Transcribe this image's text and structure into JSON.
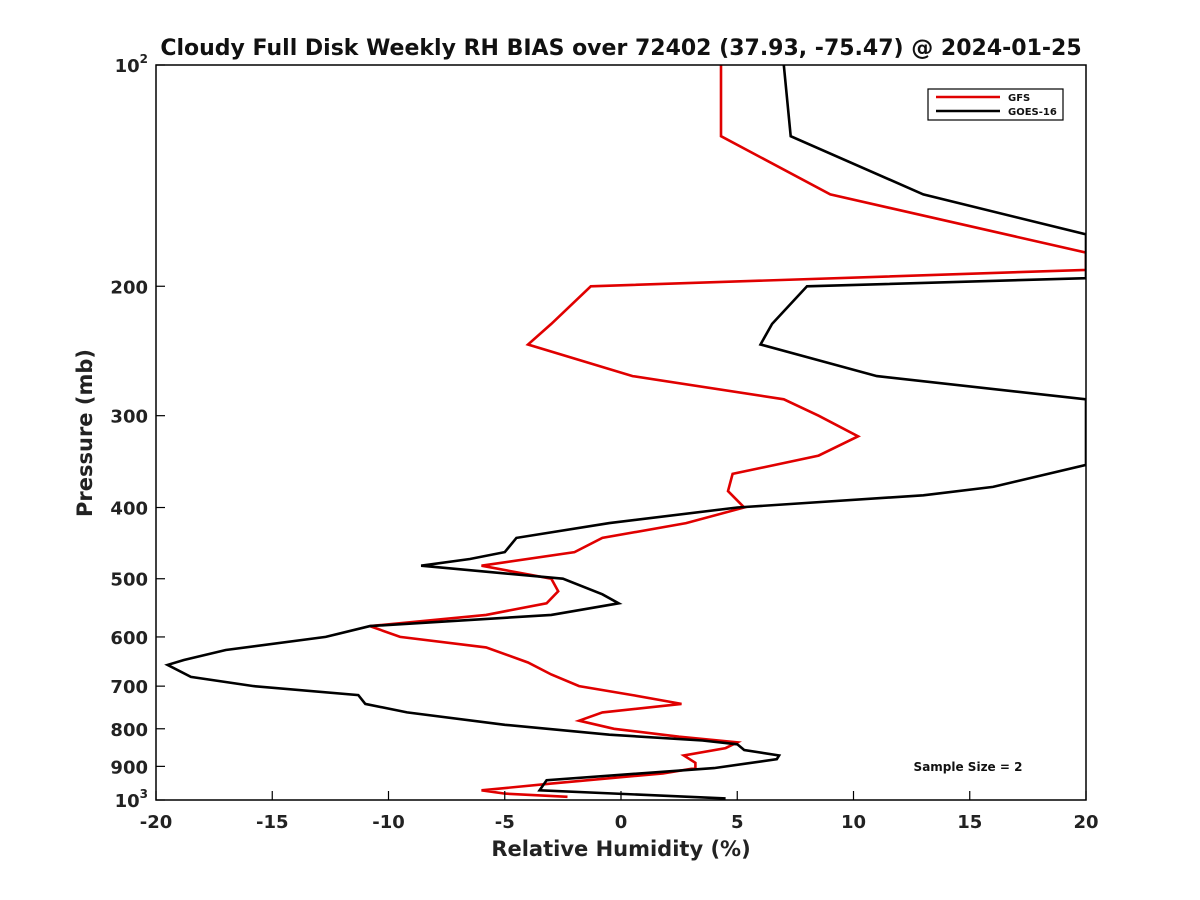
{
  "chart_data": {
    "type": "line",
    "title": "Cloudy Full Disk Weekly RH BIAS over 72402 (37.93, -75.47) @ 2024-01-25",
    "xlabel": "Relative Humidity (%)",
    "ylabel": "Pressure (mb)",
    "xlim": [
      -20,
      20
    ],
    "ylim": [
      100,
      1000
    ],
    "y_scale": "log",
    "y_reversed": true,
    "x_ticks": [
      -20,
      -15,
      -10,
      -5,
      0,
      5,
      10,
      15,
      20
    ],
    "x_tick_labels": [
      "-20",
      "-15",
      "-10",
      "-5",
      "0",
      "5",
      "10",
      "15",
      "20"
    ],
    "y_ticks": [
      {
        "value": 100,
        "base": "10",
        "exp": "2"
      },
      {
        "value": 200,
        "base": "200",
        "exp": ""
      },
      {
        "value": 300,
        "base": "300",
        "exp": ""
      },
      {
        "value": 400,
        "base": "400",
        "exp": ""
      },
      {
        "value": 500,
        "base": "500",
        "exp": ""
      },
      {
        "value": 600,
        "base": "600",
        "exp": ""
      },
      {
        "value": 700,
        "base": "700",
        "exp": ""
      },
      {
        "value": 800,
        "base": "800",
        "exp": ""
      },
      {
        "value": 900,
        "base": "900",
        "exp": ""
      },
      {
        "value": 1000,
        "base": "10",
        "exp": "3"
      }
    ],
    "grid": false,
    "legend": "top-right",
    "annotation": "Sample Size = 2",
    "series": [
      {
        "name": "GFS",
        "color": "#e00000",
        "points": [
          [
            4.3,
            100
          ],
          [
            4.3,
            125
          ],
          [
            9.0,
            150
          ],
          [
            20.0,
            180
          ],
          [
            20.0,
            190
          ],
          [
            -1.3,
            200
          ],
          [
            -3.0,
            225
          ],
          [
            -4.0,
            240
          ],
          [
            0.5,
            265
          ],
          [
            7.0,
            285
          ],
          [
            8.5,
            300
          ],
          [
            10.2,
            320
          ],
          [
            8.5,
            340
          ],
          [
            4.8,
            360
          ],
          [
            4.6,
            380
          ],
          [
            5.3,
            400
          ],
          [
            2.8,
            420
          ],
          [
            -0.8,
            440
          ],
          [
            -2.0,
            460
          ],
          [
            -6.0,
            480
          ],
          [
            -3.0,
            500
          ],
          [
            -2.7,
            520
          ],
          [
            -3.2,
            540
          ],
          [
            -5.8,
            560
          ],
          [
            -10.8,
            580
          ],
          [
            -9.5,
            600
          ],
          [
            -5.8,
            620
          ],
          [
            -4.0,
            650
          ],
          [
            -3.0,
            675
          ],
          [
            -1.8,
            700
          ],
          [
            0.5,
            720
          ],
          [
            2.6,
            740
          ],
          [
            -0.8,
            760
          ],
          [
            -1.8,
            780
          ],
          [
            -0.3,
            800
          ],
          [
            2.5,
            820
          ],
          [
            5.0,
            835
          ],
          [
            4.5,
            850
          ],
          [
            2.7,
            870
          ],
          [
            3.2,
            890
          ],
          [
            3.2,
            905
          ],
          [
            1.8,
            920
          ],
          [
            -3.0,
            950
          ],
          [
            -6.0,
            970
          ],
          [
            -5.0,
            980
          ],
          [
            -2.3,
            990
          ]
        ]
      },
      {
        "name": "GOES-16",
        "color": "#000000",
        "points": [
          [
            7.0,
            100
          ],
          [
            7.3,
            125
          ],
          [
            13.0,
            150
          ],
          [
            20.0,
            170
          ],
          [
            20.0,
            195
          ],
          [
            8.0,
            200
          ],
          [
            6.5,
            225
          ],
          [
            6.0,
            240
          ],
          [
            11.0,
            265
          ],
          [
            20.0,
            285
          ],
          [
            20.0,
            350
          ],
          [
            16.0,
            375
          ],
          [
            13.0,
            385
          ],
          [
            5.0,
            400
          ],
          [
            -0.5,
            420
          ],
          [
            -4.5,
            440
          ],
          [
            -5.0,
            460
          ],
          [
            -6.5,
            470
          ],
          [
            -8.6,
            480
          ],
          [
            -2.5,
            500
          ],
          [
            -0.8,
            525
          ],
          [
            -0.1,
            540
          ],
          [
            -3.0,
            560
          ],
          [
            -10.8,
            580
          ],
          [
            -12.7,
            600
          ],
          [
            -17.0,
            625
          ],
          [
            -18.8,
            645
          ],
          [
            -19.5,
            655
          ],
          [
            -18.5,
            680
          ],
          [
            -15.8,
            700
          ],
          [
            -11.3,
            720
          ],
          [
            -11.0,
            740
          ],
          [
            -9.2,
            760
          ],
          [
            -5.0,
            790
          ],
          [
            -0.5,
            815
          ],
          [
            3.5,
            830
          ],
          [
            5.0,
            840
          ],
          [
            5.3,
            855
          ],
          [
            6.8,
            870
          ],
          [
            6.7,
            880
          ],
          [
            4.0,
            905
          ],
          [
            -3.2,
            940
          ],
          [
            -3.5,
            970
          ],
          [
            4.5,
            995
          ]
        ]
      }
    ]
  }
}
